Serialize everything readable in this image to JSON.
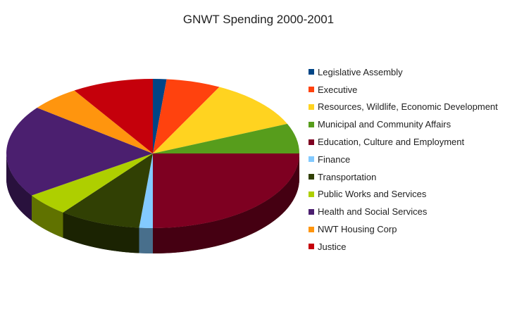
{
  "chart_data": {
    "type": "pie",
    "title": "GNWT Spending 2000-2001",
    "legend_position": "right",
    "slices": [
      {
        "label": "Legislative Assembly",
        "value": 1.5,
        "color": "#004586"
      },
      {
        "label": "Executive",
        "value": 6.0,
        "color": "#ff420e"
      },
      {
        "label": "Resources, Wildlife, Economic Development",
        "value": 11.0,
        "color": "#ffd320"
      },
      {
        "label": "Municipal and Community Affairs",
        "value": 6.5,
        "color": "#579d1c"
      },
      {
        "label": "Education, Culture and Employment",
        "value": 25.0,
        "color": "#7e0021"
      },
      {
        "label": "Finance",
        "value": 1.5,
        "color": "#83caff"
      },
      {
        "label": "Transportation",
        "value": 9.0,
        "color": "#314004"
      },
      {
        "label": "Public Works and Services",
        "value": 5.0,
        "color": "#aecf00"
      },
      {
        "label": "Health and Social Services",
        "value": 20.0,
        "color": "#4b1f6f"
      },
      {
        "label": "NWT Housing Corp",
        "value": 5.5,
        "color": "#ff950e"
      },
      {
        "label": "Justice",
        "value": 9.0,
        "color": "#c5000b"
      }
    ]
  }
}
